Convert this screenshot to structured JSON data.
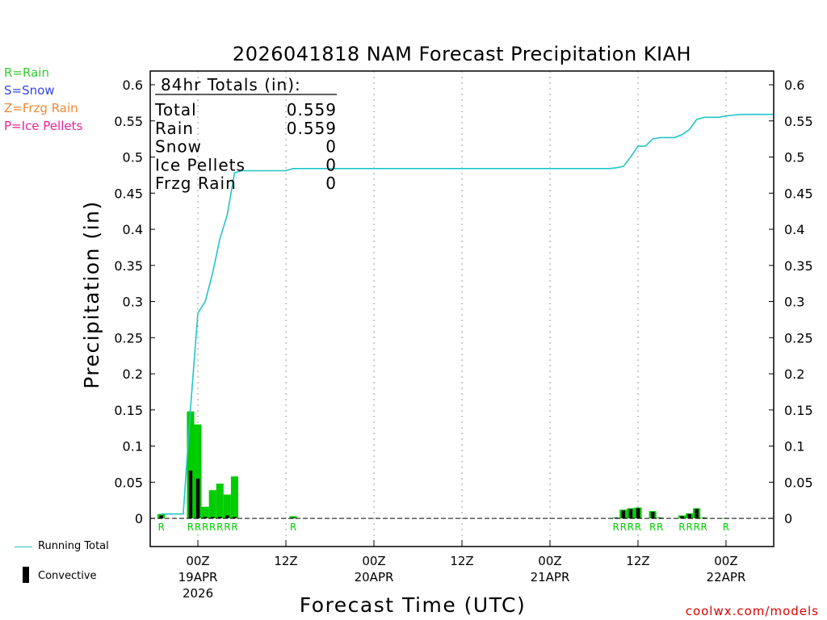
{
  "colors": {
    "rain": "#00cc00",
    "snow": "#3333ff",
    "frzg": "#ff8833",
    "ice": "#ff1199",
    "running_total": "#22c4c8",
    "convective": "#000000",
    "rain_bar": "#00cc00",
    "grid": "#999999",
    "credit": "#dd0000"
  },
  "type_legend": [
    {
      "label": "R=Rain",
      "color": "#33cc33"
    },
    {
      "label": "S=Snow",
      "color": "#3344ee"
    },
    {
      "label": "Z=Frzg Rain",
      "color": "#ee8833"
    },
    {
      "label": "P=Ice Pellets",
      "color": "#ee2299"
    }
  ],
  "totals": {
    "header": "84hr Totals (in):",
    "rows": [
      {
        "label": "Total",
        "value": "0.559"
      },
      {
        "label": "Rain",
        "value": "0.559"
      },
      {
        "label": "Snow",
        "value": "0"
      },
      {
        "label": "Ice Pellets",
        "value": "0"
      },
      {
        "label": "Frzg Rain",
        "value": "0"
      }
    ]
  },
  "bottom_legend": {
    "running_total": "Running Total",
    "convective": "Convective"
  },
  "credit": "coolwx.com/models",
  "chart_data": {
    "type": "bar",
    "title": "2026041818 NAM Forecast Precipitation KIAH",
    "xlabel": "Forecast Time (UTC)",
    "ylabel": "Precipitation (in)",
    "ylim": [
      -0.039,
      0.619
    ],
    "xlim": [
      -0.5,
      84.5
    ],
    "y_ticks": [
      0,
      0.05,
      0.1,
      0.15,
      0.2,
      0.25,
      0.3,
      0.35,
      0.4,
      0.45,
      0.5,
      0.55,
      0.6
    ],
    "y_tick_labels": [
      "0",
      "0.05",
      "0.1",
      "0.15",
      "0.2",
      "0.25",
      "0.3",
      "0.35",
      "0.4",
      "0.45",
      "0.5",
      "0.55",
      "0.6"
    ],
    "x_ticks": [
      {
        "hour": 6,
        "label": "00Z",
        "date": "19APR",
        "year": "2026"
      },
      {
        "hour": 18,
        "label": "12Z",
        "date": "",
        "year": ""
      },
      {
        "hour": 30,
        "label": "00Z",
        "date": "20APR",
        "year": ""
      },
      {
        "hour": 42,
        "label": "12Z",
        "date": "",
        "year": ""
      },
      {
        "hour": 54,
        "label": "00Z",
        "date": "21APR",
        "year": ""
      },
      {
        "hour": 66,
        "label": "12Z",
        "date": "",
        "year": ""
      },
      {
        "hour": 78,
        "label": "00Z",
        "date": "22APR",
        "year": ""
      }
    ],
    "grid": "vertical dotted",
    "bars": [
      {
        "hour": 1,
        "total": 0.006,
        "convective": 0.004,
        "type": "R"
      },
      {
        "hour": 5,
        "total": 0.148,
        "convective": 0.066,
        "type": "R"
      },
      {
        "hour": 6,
        "total": 0.13,
        "convective": 0.055,
        "type": "R"
      },
      {
        "hour": 7,
        "total": 0.016,
        "convective": 0.002,
        "type": "R"
      },
      {
        "hour": 8,
        "total": 0.039,
        "convective": 0.002,
        "type": "R"
      },
      {
        "hour": 9,
        "total": 0.048,
        "convective": 0.002,
        "type": "R"
      },
      {
        "hour": 10,
        "total": 0.033,
        "convective": 0.004,
        "type": "R"
      },
      {
        "hour": 11,
        "total": 0.058,
        "convective": 0.002,
        "type": "R"
      },
      {
        "hour": 19,
        "total": 0.003,
        "convective": 0.001,
        "type": "R"
      },
      {
        "hour": 63,
        "total": 0.001,
        "convective": 0.001,
        "type": "R"
      },
      {
        "hour": 64,
        "total": 0.012,
        "convective": 0.011,
        "type": "R"
      },
      {
        "hour": 65,
        "total": 0.014,
        "convective": 0.013,
        "type": "R"
      },
      {
        "hour": 66,
        "total": 0.015,
        "convective": 0.014,
        "type": "R"
      },
      {
        "hour": 68,
        "total": 0.01,
        "convective": 0.009,
        "type": "R"
      },
      {
        "hour": 69,
        "total": 0.001,
        "convective": 0.001,
        "type": "R"
      },
      {
        "hour": 72,
        "total": 0.004,
        "convective": 0.003,
        "type": "R"
      },
      {
        "hour": 73,
        "total": 0.007,
        "convective": 0.006,
        "type": "R"
      },
      {
        "hour": 74,
        "total": 0.014,
        "convective": 0.013,
        "type": "R"
      },
      {
        "hour": 75,
        "total": 0.001,
        "convective": 0.001,
        "type": "R"
      },
      {
        "hour": 78,
        "total": 0.0005,
        "convective": 0.0,
        "type": "R"
      }
    ],
    "running_total": [
      [
        1,
        0.006
      ],
      [
        3,
        0.006
      ],
      [
        4,
        0.006
      ],
      [
        5,
        0.154
      ],
      [
        6,
        0.284
      ],
      [
        7,
        0.3
      ],
      [
        8,
        0.339
      ],
      [
        9,
        0.387
      ],
      [
        10,
        0.42
      ],
      [
        11,
        0.478
      ],
      [
        12,
        0.481
      ],
      [
        15,
        0.481
      ],
      [
        18,
        0.481
      ],
      [
        19,
        0.484
      ],
      [
        30,
        0.484
      ],
      [
        50,
        0.484
      ],
      [
        62,
        0.484
      ],
      [
        63,
        0.485
      ],
      [
        64,
        0.487
      ],
      [
        65,
        0.5
      ],
      [
        66,
        0.515
      ],
      [
        67,
        0.515
      ],
      [
        68,
        0.525
      ],
      [
        69,
        0.527
      ],
      [
        70,
        0.527
      ],
      [
        71,
        0.527
      ],
      [
        72,
        0.531
      ],
      [
        73,
        0.538
      ],
      [
        74,
        0.552
      ],
      [
        75,
        0.555
      ],
      [
        76,
        0.555
      ],
      [
        77,
        0.555
      ],
      [
        78,
        0.557
      ],
      [
        80,
        0.559
      ],
      [
        84.5,
        0.559
      ]
    ]
  }
}
